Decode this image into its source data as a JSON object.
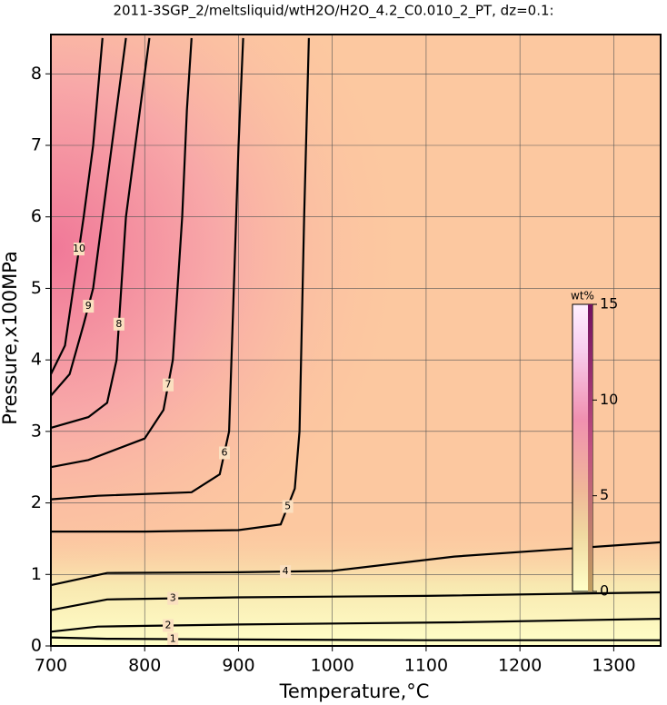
{
  "chart_data": {
    "type": "contour",
    "title": "2011-3SGP_2/meltsliquid/wtH2O/H2O_4.2_C0.010_2_PT, dz=0.1:",
    "xlabel": "Temperature,°C",
    "ylabel": "Pressure,x100MPa",
    "xlim": [
      700,
      1350
    ],
    "ylim": [
      0,
      8.55
    ],
    "xticks": [
      700,
      800,
      900,
      1000,
      1100,
      1200,
      1300
    ],
    "yticks": [
      0,
      1,
      2,
      3,
      4,
      5,
      6,
      7,
      8
    ],
    "grid": true,
    "color": "#000000",
    "series": [
      {
        "level": 1,
        "x": [
          700,
          760,
          900,
          1100,
          1350
        ],
        "y": [
          0.12,
          0.1,
          0.09,
          0.08,
          0.08
        ]
      },
      {
        "level": 2,
        "x": [
          700,
          750,
          900,
          1130,
          1350
        ],
        "y": [
          0.2,
          0.27,
          0.3,
          0.33,
          0.38
        ]
      },
      {
        "level": 3,
        "x": [
          700,
          760,
          900,
          1100,
          1350
        ],
        "y": [
          0.5,
          0.65,
          0.68,
          0.7,
          0.75
        ]
      },
      {
        "level": 4,
        "x": [
          700,
          760,
          900,
          1000,
          1130,
          1350
        ],
        "y": [
          0.85,
          1.02,
          1.03,
          1.05,
          1.25,
          1.45
        ]
      },
      {
        "level": 5,
        "x": [
          700,
          800,
          900,
          945,
          960,
          965,
          970,
          975
        ],
        "y": [
          1.6,
          1.6,
          1.62,
          1.7,
          2.2,
          3.0,
          6.0,
          8.5
        ]
      },
      {
        "level": 6,
        "x": [
          700,
          750,
          850,
          880,
          890,
          895,
          900,
          905
        ],
        "y": [
          2.05,
          2.1,
          2.15,
          2.4,
          3.0,
          5.0,
          7.0,
          8.5
        ]
      },
      {
        "level": 7,
        "x": [
          700,
          740,
          800,
          820,
          830,
          840,
          845,
          850
        ],
        "y": [
          2.5,
          2.6,
          2.9,
          3.3,
          4.0,
          6.0,
          7.5,
          8.5
        ]
      },
      {
        "level": 8,
        "x": [
          700,
          740,
          760,
          770,
          775,
          780,
          790,
          805
        ],
        "y": [
          3.05,
          3.2,
          3.4,
          4.0,
          5.0,
          6.0,
          7.0,
          8.5
        ]
      },
      {
        "level": 9,
        "x": [
          700,
          720,
          735,
          745,
          755,
          765,
          780
        ],
        "y": [
          3.5,
          3.8,
          4.5,
          5.0,
          6.0,
          7.0,
          8.5
        ]
      },
      {
        "level": 10,
        "x": [
          700,
          715,
          725,
          735,
          745,
          755
        ],
        "y": [
          3.8,
          4.2,
          5.1,
          6.0,
          7.0,
          8.5
        ]
      }
    ],
    "colorbar": {
      "title": "wt%",
      "lim": [
        0,
        15
      ],
      "ticks": [
        0,
        5,
        10,
        15
      ]
    }
  }
}
